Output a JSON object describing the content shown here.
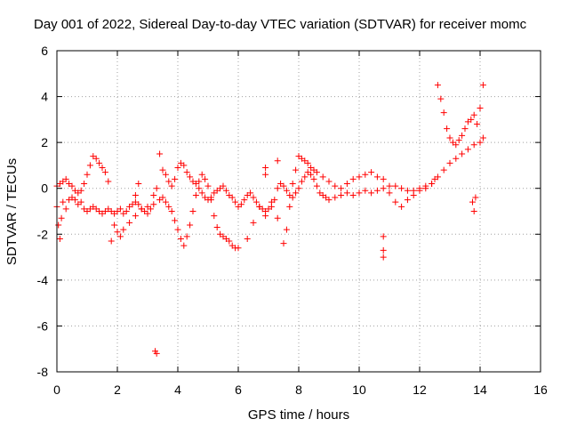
{
  "chart_data": {
    "type": "scatter",
    "title": "Day 001 of 2022, Sidereal Day-to-day VTEC variation (SDTVAR) for receiver momc",
    "xlabel": "GPS time / hours",
    "ylabel": "SDTVAR / TECUs",
    "xlim": [
      0,
      16
    ],
    "ylim": [
      -8,
      6
    ],
    "xticks": [
      "0",
      "2",
      "4",
      "6",
      "8",
      "10",
      "12",
      "14",
      "16"
    ],
    "yticks": [
      "-8",
      "-6",
      "-4",
      "-2",
      "0",
      "2",
      "4",
      "6"
    ],
    "grid": true,
    "marker": "+",
    "color": "#ff0000",
    "series": [
      {
        "name": "SDTVAR",
        "x": [
          0.0,
          0.05,
          0.1,
          0.15,
          0.2,
          0.3,
          0.4,
          0.5,
          0.6,
          0.7,
          0.8,
          0.9,
          1.0,
          1.1,
          1.2,
          1.3,
          1.4,
          1.5,
          1.6,
          1.7,
          1.8,
          1.9,
          2.0,
          2.1,
          2.2,
          2.3,
          2.4,
          2.5,
          2.6,
          2.7,
          2.8,
          2.9,
          3.0,
          3.1,
          3.2,
          3.3,
          3.4,
          3.5,
          3.6,
          3.7,
          3.8,
          3.9,
          4.0,
          4.1,
          4.2,
          4.3,
          4.4,
          4.5,
          4.6,
          4.7,
          4.8,
          4.9,
          5.0,
          5.1,
          5.2,
          5.3,
          5.4,
          5.5,
          5.6,
          5.7,
          5.8,
          5.9,
          6.0,
          6.1,
          6.2,
          6.3,
          6.4,
          6.5,
          6.6,
          6.7,
          6.8,
          6.9,
          7.0,
          7.1,
          7.2,
          7.3,
          7.4,
          7.5,
          7.6,
          7.7,
          7.8,
          7.9,
          8.0,
          8.1,
          8.2,
          8.3,
          8.4,
          8.5,
          8.6,
          8.7,
          8.8,
          8.9,
          9.0,
          9.2,
          9.4,
          9.6,
          9.8,
          10.0,
          10.2,
          10.4,
          10.6,
          10.8,
          11.0,
          11.2,
          11.4,
          11.6,
          11.8,
          12.0,
          12.2,
          12.4,
          12.5,
          12.6,
          12.7,
          12.8,
          12.9,
          13.0,
          13.1,
          13.2,
          13.3,
          13.4,
          13.5,
          13.6,
          13.7,
          13.8,
          13.9,
          14.0,
          14.1,
          0.0,
          0.1,
          0.2,
          0.3,
          0.4,
          0.5,
          0.6,
          0.7,
          0.8,
          0.9,
          1.0,
          1.1,
          1.2,
          1.3,
          1.4,
          1.5,
          1.6,
          1.7,
          1.8,
          1.9,
          2.0,
          2.1,
          2.2,
          2.4,
          2.6,
          2.8,
          3.0,
          3.2,
          3.4,
          3.5,
          3.6,
          3.7,
          3.8,
          3.9,
          4.0,
          4.1,
          4.2,
          4.3,
          4.4,
          4.5,
          4.6,
          4.7,
          4.8,
          4.9,
          5.0,
          5.1,
          5.2,
          5.3,
          5.4,
          5.5,
          5.6,
          5.7,
          5.8,
          5.9,
          6.0,
          6.3,
          6.5,
          6.7,
          6.9,
          7.1,
          7.3,
          7.5,
          7.6,
          7.7,
          7.8,
          7.9,
          8.0,
          8.1,
          8.2,
          8.3,
          8.4,
          8.5,
          8.6,
          8.8,
          9.0,
          9.2,
          9.4,
          9.6,
          9.8,
          10.0,
          10.2,
          10.4,
          10.6,
          10.8,
          11.0,
          11.2,
          11.4,
          11.6,
          11.8,
          12.0,
          12.2,
          12.4,
          12.6,
          12.8,
          13.0,
          13.2,
          13.4,
          13.6,
          13.8,
          14.0,
          14.1,
          3.25,
          3.3,
          10.8,
          10.8,
          10.8,
          13.75,
          13.8,
          13.85,
          6.9,
          6.9,
          7.3,
          2.6,
          2.7
        ],
        "y": [
          -0.8,
          -1.6,
          -2.2,
          -1.3,
          -0.6,
          -0.9,
          -0.5,
          -0.4,
          -0.5,
          -0.7,
          -0.6,
          -0.9,
          -1.0,
          -0.9,
          -0.8,
          -0.9,
          -1.0,
          -1.1,
          -1.0,
          -0.9,
          -1.0,
          -1.1,
          -1.0,
          -0.9,
          -1.1,
          -1.0,
          -0.8,
          -0.7,
          -0.6,
          -0.7,
          -0.9,
          -1.0,
          -1.1,
          -0.9,
          -0.3,
          0.0,
          1.5,
          0.8,
          0.6,
          0.3,
          0.1,
          0.4,
          0.9,
          1.1,
          1.0,
          0.7,
          0.5,
          0.3,
          0.2,
          0.0,
          -0.2,
          -0.4,
          -0.5,
          -0.4,
          -0.2,
          -0.1,
          0.0,
          0.1,
          -0.1,
          -0.3,
          -0.4,
          -0.6,
          -0.8,
          -0.7,
          -0.5,
          -0.3,
          -0.2,
          -0.4,
          -0.6,
          -0.8,
          -0.9,
          -1.0,
          -0.9,
          -0.8,
          -0.5,
          0.0,
          0.2,
          0.1,
          -0.1,
          -0.3,
          -0.4,
          -0.2,
          0.0,
          0.3,
          0.5,
          0.7,
          0.6,
          0.4,
          0.1,
          -0.2,
          -0.3,
          -0.4,
          -0.5,
          -0.4,
          -0.3,
          -0.2,
          -0.3,
          -0.2,
          -0.1,
          -0.2,
          -0.1,
          0.0,
          0.1,
          0.1,
          0.0,
          -0.1,
          -0.1,
          0.0,
          0.1,
          0.2,
          0.4,
          4.5,
          3.9,
          3.3,
          2.6,
          2.2,
          2.0,
          1.9,
          2.1,
          2.3,
          2.6,
          2.9,
          3.0,
          3.2,
          2.8,
          3.5,
          4.5,
          0.1,
          0.2,
          0.3,
          0.4,
          0.2,
          0.1,
          -0.1,
          -0.2,
          -0.1,
          0.2,
          0.6,
          1.0,
          1.4,
          1.3,
          1.1,
          0.9,
          0.7,
          0.3,
          -2.3,
          -1.6,
          -1.9,
          -2.1,
          -1.8,
          -1.5,
          -1.2,
          -0.9,
          -0.8,
          -0.7,
          -0.5,
          -0.4,
          -0.6,
          -0.8,
          -1.0,
          -1.4,
          -1.8,
          -2.2,
          -2.5,
          -2.1,
          -1.6,
          -1.0,
          -0.3,
          0.3,
          0.6,
          0.4,
          0.1,
          -0.5,
          -1.2,
          -1.7,
          -2.0,
          -2.1,
          -2.2,
          -2.3,
          -2.5,
          -2.6,
          -2.6,
          -2.2,
          -1.5,
          -0.8,
          -1.2,
          -0.6,
          -1.3,
          -2.4,
          -1.8,
          -0.8,
          0.2,
          0.8,
          1.4,
          1.3,
          1.2,
          1.1,
          0.9,
          0.8,
          0.7,
          0.5,
          0.3,
          0.1,
          0.0,
          0.2,
          0.4,
          0.5,
          0.6,
          0.7,
          0.5,
          0.4,
          -0.2,
          -0.6,
          -0.8,
          -0.5,
          -0.3,
          -0.1,
          0.0,
          0.2,
          0.5,
          0.8,
          1.1,
          1.3,
          1.5,
          1.7,
          1.9,
          2.0,
          2.2,
          -7.1,
          -7.2,
          -2.1,
          -2.7,
          -3.0,
          -0.6,
          -1.0,
          -0.4,
          0.6,
          0.9,
          1.2,
          -0.3,
          0.2
        ]
      }
    ]
  }
}
